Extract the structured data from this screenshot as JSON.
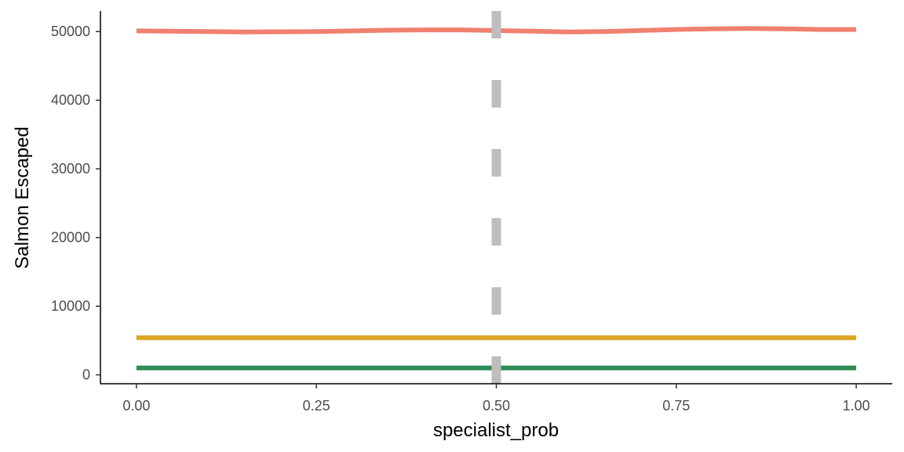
{
  "chart_data": {
    "type": "line",
    "title": "",
    "xlabel": "specialist_prob",
    "ylabel": "Salmon Escaped",
    "xlim": [
      -0.05,
      1.05
    ],
    "ylim": [
      -1300,
      53000
    ],
    "x_ticks": [
      0,
      0.25,
      0.5,
      0.75,
      1
    ],
    "x_tick_labels": [
      "0.00",
      "0.25",
      "0.50",
      "0.75",
      "1.00"
    ],
    "y_ticks": [
      0,
      10000,
      20000,
      30000,
      40000,
      50000
    ],
    "y_tick_labels": [
      "0",
      "10000",
      "20000",
      "30000",
      "40000",
      "50000"
    ],
    "grid": false,
    "legend": "none",
    "series": [
      {
        "color": "#F08070",
        "x": [
          0,
          0.1,
          0.15,
          0.25,
          0.3,
          0.35,
          0.4,
          0.45,
          0.5,
          0.55,
          0.6,
          0.65,
          0.7,
          0.75,
          0.8,
          0.85,
          0.9,
          0.95,
          1
        ],
        "values": [
          50100,
          50000,
          49950,
          50000,
          50100,
          50200,
          50250,
          50250,
          50150,
          50050,
          49950,
          50000,
          50150,
          50300,
          50400,
          50450,
          50400,
          50300,
          50300
        ]
      },
      {
        "color": "#DAA520",
        "x": [
          0,
          0.25,
          0.5,
          0.75,
          1
        ],
        "values": [
          5400,
          5400,
          5400,
          5400,
          5400
        ]
      },
      {
        "color": "#2E8B57",
        "x": [
          0,
          0.25,
          0.5,
          0.75,
          1
        ],
        "values": [
          1000,
          1000,
          1000,
          1000,
          1000
        ]
      }
    ],
    "reference_line": {
      "orientation": "vertical",
      "x": 0.5,
      "style": "dashed",
      "color": "#BEBEBE"
    }
  }
}
